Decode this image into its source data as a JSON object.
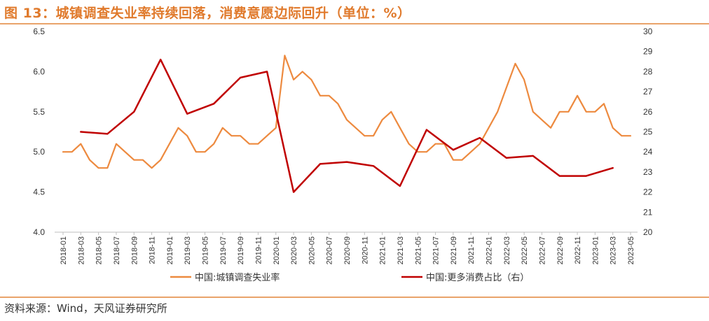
{
  "header": {
    "title": "图 13：城镇调查失业率持续回落，消费意愿边际回升（单位：%）"
  },
  "footer": {
    "source": "资料来源：Wind，天风证券研究所"
  },
  "chart_data": {
    "type": "line",
    "title": "图 13：城镇调查失业率持续回落，消费意愿边际回升（单位：%）",
    "categories": [
      "2018-01",
      "2018-03",
      "2018-05",
      "2018-07",
      "2018-09",
      "2018-11",
      "2019-01",
      "2019-03",
      "2019-05",
      "2019-07",
      "2019-09",
      "2019-11",
      "2020-01",
      "2020-03",
      "2020-05",
      "2020-07",
      "2020-09",
      "2020-11",
      "2021-01",
      "2021-03",
      "2021-05",
      "2021-07",
      "2021-09",
      "2021-11",
      "2022-01",
      "2022-03",
      "2022-05",
      "2022-07",
      "2022-09",
      "2022-11",
      "2023-01",
      "2023-03",
      "2023-05"
    ],
    "y_left": {
      "min": 4.0,
      "max": 6.5,
      "step": 0.5,
      "ticks": [
        "4.0",
        "4.5",
        "5.0",
        "5.5",
        "6.0",
        "6.5"
      ]
    },
    "y_right": {
      "min": 20,
      "max": 30,
      "step": 1,
      "ticks": [
        "20",
        "21",
        "22",
        "23",
        "24",
        "25",
        "26",
        "27",
        "28",
        "29",
        "30"
      ]
    },
    "grid": false,
    "legend_position": "bottom",
    "colors": {
      "unemployment": "#ed8a3f",
      "consumption": "#c00000",
      "axis": "#bfbfbf",
      "title": "#e07a2c"
    },
    "series": [
      {
        "name": "中国:城镇调查失业率",
        "axis": "left",
        "color": "#ed8a3f",
        "points": [
          [
            "2018-01",
            5.0
          ],
          [
            "2018-02",
            5.0
          ],
          [
            "2018-03",
            5.1
          ],
          [
            "2018-04",
            4.9
          ],
          [
            "2018-05",
            4.8
          ],
          [
            "2018-06",
            4.8
          ],
          [
            "2018-07",
            5.1
          ],
          [
            "2018-08",
            5.0
          ],
          [
            "2018-09",
            4.9
          ],
          [
            "2018-10",
            4.9
          ],
          [
            "2018-11",
            4.8
          ],
          [
            "2018-12",
            4.9
          ],
          [
            "2019-02",
            5.3
          ],
          [
            "2019-03",
            5.2
          ],
          [
            "2019-04",
            5.0
          ],
          [
            "2019-05",
            5.0
          ],
          [
            "2019-06",
            5.1
          ],
          [
            "2019-07",
            5.3
          ],
          [
            "2019-08",
            5.2
          ],
          [
            "2019-09",
            5.2
          ],
          [
            "2019-10",
            5.1
          ],
          [
            "2019-11",
            5.1
          ],
          [
            "2019-12",
            5.2
          ],
          [
            "2020-01",
            5.3
          ],
          [
            "2020-02",
            6.2
          ],
          [
            "2020-03",
            5.9
          ],
          [
            "2020-04",
            6.0
          ],
          [
            "2020-05",
            5.9
          ],
          [
            "2020-06",
            5.7
          ],
          [
            "2020-07",
            5.7
          ],
          [
            "2020-08",
            5.6
          ],
          [
            "2020-09",
            5.4
          ],
          [
            "2020-10",
            5.3
          ],
          [
            "2020-11",
            5.2
          ],
          [
            "2020-12",
            5.2
          ],
          [
            "2021-01",
            5.4
          ],
          [
            "2021-02",
            5.5
          ],
          [
            "2021-03",
            5.3
          ],
          [
            "2021-04",
            5.1
          ],
          [
            "2021-05",
            5.0
          ],
          [
            "2021-06",
            5.0
          ],
          [
            "2021-07",
            5.1
          ],
          [
            "2021-08",
            5.1
          ],
          [
            "2021-09",
            4.9
          ],
          [
            "2021-10",
            4.9
          ],
          [
            "2021-11",
            5.0
          ],
          [
            "2021-12",
            5.1
          ],
          [
            "2022-01",
            5.3
          ],
          [
            "2022-02",
            5.5
          ],
          [
            "2022-03",
            5.8
          ],
          [
            "2022-04",
            6.1
          ],
          [
            "2022-05",
            5.9
          ],
          [
            "2022-06",
            5.5
          ],
          [
            "2022-07",
            5.4
          ],
          [
            "2022-08",
            5.3
          ],
          [
            "2022-09",
            5.5
          ],
          [
            "2022-10",
            5.5
          ],
          [
            "2022-11",
            5.7
          ],
          [
            "2022-12",
            5.5
          ],
          [
            "2023-01",
            5.5
          ],
          [
            "2023-02",
            5.6
          ],
          [
            "2023-03",
            5.3
          ],
          [
            "2023-04",
            5.2
          ],
          [
            "2023-05",
            5.2
          ]
        ]
      },
      {
        "name": "中国:更多消费占比（右）",
        "axis": "right",
        "color": "#c00000",
        "points": [
          [
            "2018-03",
            25.0
          ],
          [
            "2018-06",
            24.9
          ],
          [
            "2018-09",
            26.0
          ],
          [
            "2018-12",
            28.6
          ],
          [
            "2019-03",
            25.9
          ],
          [
            "2019-06",
            26.4
          ],
          [
            "2019-09",
            27.7
          ],
          [
            "2019-12",
            28.0
          ],
          [
            "2020-03",
            22.0
          ],
          [
            "2020-06",
            23.4
          ],
          [
            "2020-09",
            23.5
          ],
          [
            "2020-12",
            23.3
          ],
          [
            "2021-03",
            22.3
          ],
          [
            "2021-06",
            25.1
          ],
          [
            "2021-09",
            24.1
          ],
          [
            "2021-12",
            24.7
          ],
          [
            "2022-03",
            23.7
          ],
          [
            "2022-06",
            23.8
          ],
          [
            "2022-09",
            22.8
          ],
          [
            "2022-12",
            22.8
          ],
          [
            "2023-03",
            23.2
          ]
        ]
      }
    ]
  }
}
